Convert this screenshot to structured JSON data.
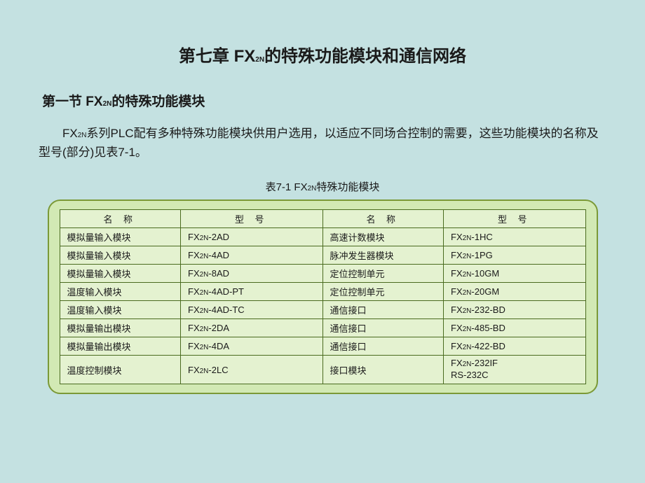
{
  "chapter": {
    "title_prefix": "第七章  FX",
    "title_sub": "2N",
    "title_suffix": "的特殊功能模块和通信网络"
  },
  "section": {
    "title_prefix": "第一节  FX",
    "title_sub": "2N",
    "title_suffix": "的特殊功能模块"
  },
  "intro": {
    "prefix": "FX",
    "sub": "2N",
    "suffix": "系列PLC配有多种特殊功能模块供用户选用，以适应不同场合控制的需要，这些功能模块的名称及型号(部分)见表7-1。"
  },
  "table": {
    "caption_prefix": "表7-1  FX",
    "caption_sub": "2N",
    "caption_suffix": "特殊功能模块",
    "headers": {
      "col1": "名  称",
      "col2": "型  号",
      "col3": "名  称",
      "col4": "型  号"
    },
    "rows": [
      {
        "name1": "模拟量输入模块",
        "model1_prefix": "FX",
        "model1_sub": "2N",
        "model1_suffix": "-2AD",
        "name2": "高速计数模块",
        "model2_prefix": "FX",
        "model2_sub": "2N",
        "model2_suffix": "-1HC"
      },
      {
        "name1": "模拟量输入模块",
        "model1_prefix": "FX",
        "model1_sub": "2N",
        "model1_suffix": "-4AD",
        "name2": "脉冲发生器模块",
        "model2_prefix": "FX",
        "model2_sub": "2N",
        "model2_suffix": "-1PG"
      },
      {
        "name1": "模拟量输入模块",
        "model1_prefix": "FX",
        "model1_sub": "2N",
        "model1_suffix": "-8AD",
        "name2": "定位控制单元",
        "model2_prefix": "FX",
        "model2_sub": "2N",
        "model2_suffix": "-10GM"
      },
      {
        "name1": "温度输入模块",
        "model1_prefix": "FX",
        "model1_sub": "2N",
        "model1_suffix": "-4AD-PT",
        "name2": "定位控制单元",
        "model2_prefix": "FX",
        "model2_sub": "2N",
        "model2_suffix": "-20GM"
      },
      {
        "name1": "温度输入模块",
        "model1_prefix": "FX",
        "model1_sub": "2N",
        "model1_suffix": "-4AD-TC",
        "name2": "通信接口",
        "model2_prefix": "FX",
        "model2_sub": "2N",
        "model2_suffix": "-232-BD"
      },
      {
        "name1": "模拟量输出模块",
        "model1_prefix": "FX",
        "model1_sub": "2N",
        "model1_suffix": "-2DA",
        "name2": "通信接口",
        "model2_prefix": "FX",
        "model2_sub": "2N",
        "model2_suffix": "-485-BD"
      },
      {
        "name1": "模拟量输出模块",
        "model1_prefix": "FX",
        "model1_sub": "2N",
        "model1_suffix": "-4DA",
        "name2": "通信接口",
        "model2_prefix": "FX",
        "model2_sub": "2N",
        "model2_suffix": "-422-BD"
      },
      {
        "name1": "温度控制模块",
        "model1_prefix": "FX",
        "model1_sub": "2N",
        "model1_suffix": "-2LC",
        "name2": "接口模块",
        "model2_line1_prefix": "FX",
        "model2_line1_sub": "2N",
        "model2_line1_suffix": "-232IF",
        "model2_line2": "RS-232C"
      }
    ]
  },
  "colors": {
    "background": "#c4e1e1",
    "table_wrapper_bg": "#d2e9b4",
    "table_wrapper_border": "#7b9937",
    "table_cell_bg": "#e4f2d0",
    "table_cell_border": "#4a6b1f",
    "text": "#1a1a1a"
  }
}
